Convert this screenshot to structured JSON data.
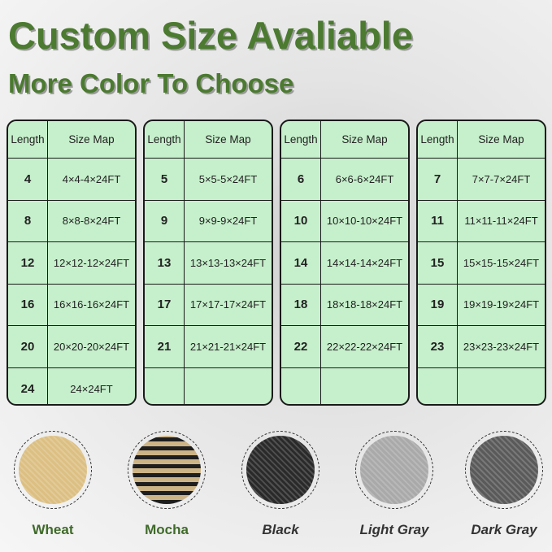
{
  "headline": "Custom Size Avaliable",
  "subheadline": "More Color To Choose",
  "table_headers": {
    "length": "Length",
    "size_map": "Size Map"
  },
  "tables": [
    {
      "rows": [
        {
          "length": "4",
          "size": "4×4-4×24FT"
        },
        {
          "length": "8",
          "size": "8×8-8×24FT"
        },
        {
          "length": "12",
          "size": "12×12-12×24FT"
        },
        {
          "length": "16",
          "size": "16×16-16×24FT"
        },
        {
          "length": "20",
          "size": "20×20-20×24FT"
        },
        {
          "length": "24",
          "size": "24×24FT"
        }
      ]
    },
    {
      "rows": [
        {
          "length": "5",
          "size": "5×5-5×24FT"
        },
        {
          "length": "9",
          "size": "9×9-9×24FT"
        },
        {
          "length": "13",
          "size": "13×13-13×24FT"
        },
        {
          "length": "17",
          "size": "17×17-17×24FT"
        },
        {
          "length": "21",
          "size": "21×21-21×24FT"
        },
        {
          "length": "",
          "size": ""
        }
      ]
    },
    {
      "rows": [
        {
          "length": "6",
          "size": "6×6-6×24FT"
        },
        {
          "length": "10",
          "size": "10×10-10×24FT"
        },
        {
          "length": "14",
          "size": "14×14-14×24FT"
        },
        {
          "length": "18",
          "size": "18×18-18×24FT"
        },
        {
          "length": "22",
          "size": "22×22-22×24FT"
        },
        {
          "length": "",
          "size": ""
        }
      ]
    },
    {
      "rows": [
        {
          "length": "7",
          "size": "7×7-7×24FT"
        },
        {
          "length": "11",
          "size": "11×11-11×24FT"
        },
        {
          "length": "15",
          "size": "15×15-15×24FT"
        },
        {
          "length": "19",
          "size": "19×19-19×24FT"
        },
        {
          "length": "23",
          "size": "23×23-23×24FT"
        },
        {
          "length": "",
          "size": ""
        }
      ]
    }
  ],
  "colors": [
    {
      "name": "Wheat",
      "swatch": "#dcbf82",
      "italic": false
    },
    {
      "name": "Mocha",
      "swatch": "#6b5a3c",
      "italic": false
    },
    {
      "name": "Black",
      "swatch": "#2a2a2a",
      "italic": true
    },
    {
      "name": "Light Gray",
      "swatch": "#a9a9a9",
      "italic": true
    },
    {
      "name": "Dark Gray",
      "swatch": "#5a5a5a",
      "italic": true
    }
  ],
  "theme": {
    "title_green": "#4b7a30",
    "table_bg": "#c6efcb"
  }
}
